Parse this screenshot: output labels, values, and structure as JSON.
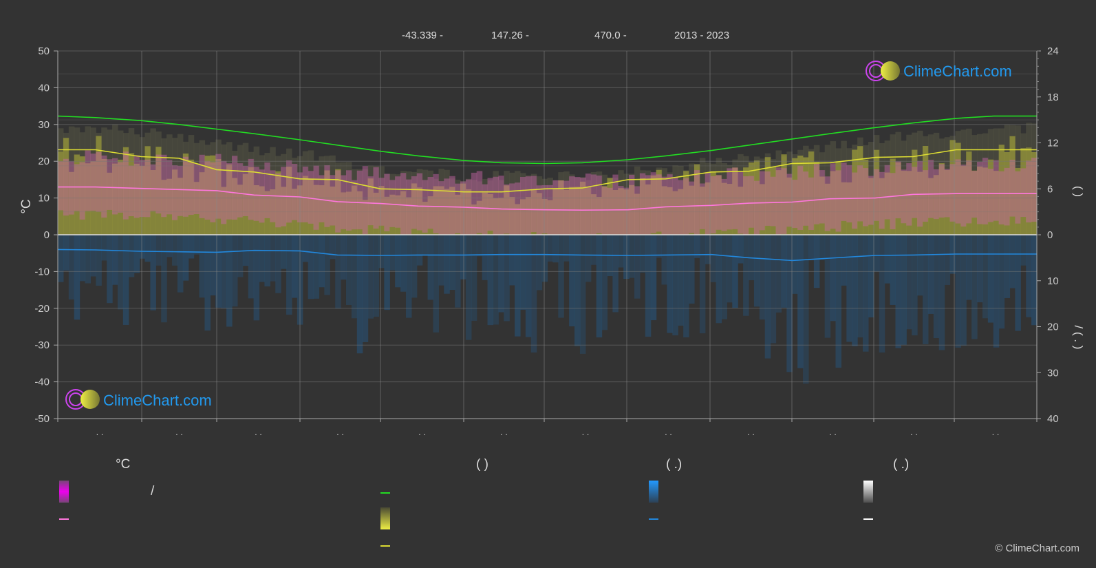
{
  "header": {
    "latitude": "-43.339 -",
    "longitude": "147.26 -",
    "elevation": "470.0 -",
    "period": "2013 - 2023"
  },
  "logo": {
    "text": "ClimeChart.com"
  },
  "copyright": "© ClimeChart.com",
  "axes": {
    "left_unit": "°C",
    "left_ticks": [
      50,
      40,
      30,
      20,
      10,
      0,
      -10,
      -20,
      -30,
      -40,
      -50
    ],
    "right_upper_ticks": [
      24,
      18,
      12,
      6,
      0
    ],
    "right_lower_ticks": [
      10,
      20,
      30,
      40
    ],
    "right_upper_label": "(          )",
    "right_lower_label": "/         (  .  )",
    "x_tick_labels": [
      ". .",
      ". .",
      ". .",
      ". .",
      ". .",
      ". .",
      ". .",
      ". .",
      ". .",
      ". .",
      ". .",
      ". ."
    ]
  },
  "legend": {
    "col1_header": "°C",
    "col1_item1": "/",
    "col2_header": "(            )",
    "col3_header": "(    .)",
    "col4_header": "(    .)"
  },
  "colors": {
    "background": "#333333",
    "daylight": "#22dd22",
    "sunshine": "#dddd33",
    "temperature": "#ff77dd",
    "precipitation": "#2288dd",
    "grid": "#555555",
    "zero_line": "#dddddd"
  },
  "chart_data": {
    "type": "line",
    "x": [
      1,
      15,
      32,
      46,
      60,
      74,
      91,
      105,
      121,
      135,
      152,
      166,
      182,
      196,
      213,
      227,
      244,
      258,
      274,
      288,
      305,
      319,
      335,
      349,
      365
    ],
    "series": [
      {
        "key": "daylight_hours",
        "axis": "right_upper",
        "values": [
          15.5,
          15.3,
          14.9,
          14.4,
          13.8,
          13.2,
          12.4,
          11.7,
          10.9,
          10.3,
          9.7,
          9.4,
          9.3,
          9.4,
          9.8,
          10.3,
          11.0,
          11.7,
          12.5,
          13.2,
          14.0,
          14.6,
          15.2,
          15.5,
          15.5
        ]
      },
      {
        "key": "sunshine_hours",
        "axis": "right_upper",
        "values": [
          11.1,
          11.1,
          10.2,
          10.0,
          8.5,
          8.2,
          7.3,
          7.2,
          6.0,
          5.9,
          5.6,
          5.6,
          6.0,
          6.1,
          7.2,
          7.3,
          8.2,
          8.3,
          9.3,
          9.4,
          10.1,
          10.2,
          11.1,
          11.1,
          11.1
        ]
      },
      {
        "key": "mean_temperature_c",
        "axis": "left",
        "values": [
          13.0,
          13.0,
          12.6,
          12.3,
          12.0,
          10.8,
          10.3,
          9.0,
          8.5,
          7.8,
          7.5,
          7.0,
          6.8,
          6.7,
          6.8,
          7.6,
          8.0,
          8.6,
          8.9,
          9.8,
          10.0,
          11.0,
          11.2,
          11.2,
          11.2
        ]
      },
      {
        "key": "daily_precipitation_mm",
        "axis": "right_lower",
        "values": [
          3.2,
          3.3,
          3.6,
          3.7,
          3.8,
          3.4,
          3.5,
          4.4,
          4.5,
          4.4,
          4.4,
          4.3,
          4.3,
          4.4,
          4.5,
          4.4,
          4.3,
          5.0,
          5.6,
          5.1,
          4.5,
          4.4,
          4.2,
          4.2,
          4.2
        ]
      }
    ],
    "band_max_temp_c": [
      29,
      29,
      28,
      27,
      25,
      23,
      22,
      20,
      18,
      17,
      16,
      16,
      16,
      16,
      17,
      18,
      20,
      21,
      23,
      24,
      26,
      27,
      28,
      29,
      29
    ],
    "ylim_left": [
      -50,
      50
    ],
    "ylim_right_upper": [
      0,
      24
    ],
    "ylim_right_lower": [
      0,
      40
    ]
  }
}
